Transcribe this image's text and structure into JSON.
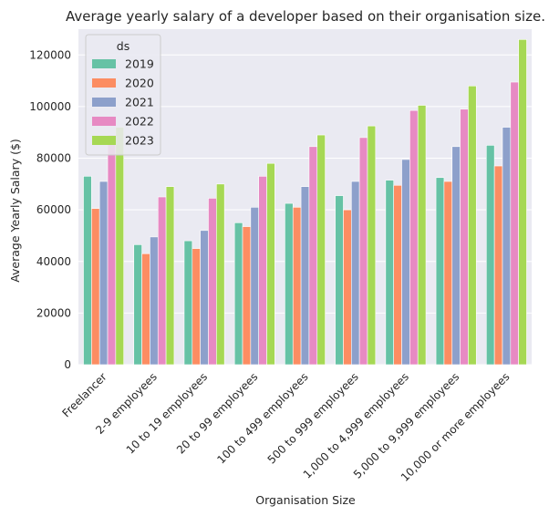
{
  "chart_data": {
    "type": "bar",
    "title": "Average yearly salary of a developer based on their organisation size.",
    "xlabel": "Organisation Size",
    "ylabel": "Average Yearly Salary ($)",
    "ylim": [
      0,
      130000
    ],
    "yticks": [
      0,
      20000,
      40000,
      60000,
      80000,
      100000,
      120000
    ],
    "ytick_labels": [
      "0",
      "20000",
      "40000",
      "60000",
      "80000",
      "100000",
      "120000"
    ],
    "grid": true,
    "legend": {
      "title": "ds",
      "placement": "top-left"
    },
    "categories": [
      "Freelancer",
      "2-9 employees",
      "10 to 19 employees",
      "20 to 99 employees",
      "100 to 499 employees",
      "500 to 999 employees",
      "1,000 to 4,999 employees",
      "5,000 to 9,999 employees",
      "10,000 or more employees"
    ],
    "series": [
      {
        "name": "2019",
        "color": "#66c2a5",
        "values": [
          73000,
          46500,
          48000,
          55000,
          62500,
          65500,
          71500,
          72500,
          85000
        ]
      },
      {
        "name": "2020",
        "color": "#fc8d62",
        "values": [
          60500,
          43000,
          45000,
          53500,
          61000,
          60000,
          69500,
          71000,
          77000
        ]
      },
      {
        "name": "2021",
        "color": "#8da0cb",
        "values": [
          71000,
          49500,
          52000,
          61000,
          69000,
          71000,
          79500,
          84500,
          92000
        ]
      },
      {
        "name": "2022",
        "color": "#e78ac3",
        "values": [
          89000,
          65000,
          64500,
          73000,
          84500,
          88000,
          98500,
          99000,
          109500
        ]
      },
      {
        "name": "2023",
        "color": "#a6d854",
        "values": [
          92000,
          69000,
          70000,
          78000,
          89000,
          92500,
          100500,
          108000,
          126000
        ]
      }
    ]
  }
}
